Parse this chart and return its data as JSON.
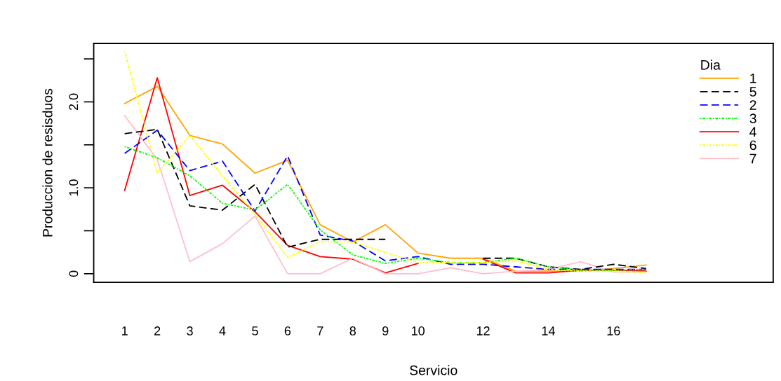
{
  "chart_data": {
    "type": "line",
    "xlabel": "Servicio",
    "ylabel": "Produccion de resisduos",
    "legend_title": "Dia",
    "legend": "top right",
    "grid": false,
    "x": [
      1,
      2,
      3,
      4,
      5,
      6,
      7,
      8,
      9,
      10,
      11,
      12,
      13,
      14,
      15,
      16,
      17
    ],
    "xlim": [
      0.05,
      20.9
    ],
    "xticks": [
      1,
      2,
      3,
      4,
      5,
      6,
      7,
      8,
      9,
      10,
      12,
      14,
      16
    ],
    "ylim": [
      -0.1,
      2.68
    ],
    "yticks": [
      0,
      {
        "value": 0.5,
        "label": null
      },
      {
        "value": 1,
        "label": "1.0"
      },
      {
        "value": 1.5,
        "label": null
      },
      {
        "value": 2,
        "label": "2.0"
      },
      {
        "value": 2.5,
        "label": null
      }
    ],
    "series": [
      {
        "name": "1",
        "color": "#ffa500",
        "line_style": "solid",
        "values": [
          1.98,
          2.18,
          1.61,
          1.51,
          1.17,
          1.32,
          0.57,
          0.37,
          0.57,
          0.24,
          0.18,
          0.18,
          0.03,
          0.03,
          0.03,
          0.06,
          0.1
        ]
      },
      {
        "name": "5",
        "color": "#000000",
        "line_style": "dashed",
        "values": [
          1.63,
          1.68,
          0.79,
          0.74,
          1.04,
          0.31,
          0.4,
          0.4,
          0.4,
          null,
          null,
          0.18,
          0.18,
          0.08,
          0.05,
          0.11,
          0.06
        ]
      },
      {
        "name": "2",
        "color": "#0000ff",
        "line_style": "dashed",
        "values": [
          1.4,
          1.67,
          1.2,
          1.31,
          0.73,
          1.37,
          0.45,
          0.38,
          0.15,
          0.2,
          0.11,
          0.11,
          0.08,
          0.05,
          0.05,
          0.05,
          0.05
        ]
      },
      {
        "name": "3",
        "color": "#00ff00",
        "line_style": "dotted",
        "values": [
          1.48,
          1.35,
          1.14,
          0.82,
          0.74,
          1.04,
          0.51,
          0.22,
          0.12,
          0.18,
          0.13,
          0.13,
          0.18,
          0.08,
          0.04,
          0.04,
          0.05
        ]
      },
      {
        "name": "4",
        "color": "#ff0000",
        "line_style": "solid",
        "values": [
          0.97,
          2.28,
          0.91,
          1.03,
          0.72,
          0.33,
          0.2,
          0.17,
          0.01,
          0.12,
          null,
          0.17,
          0.01,
          0.01,
          0.04,
          0.04,
          0.03
        ]
      },
      {
        "name": "6",
        "color": "#ffff00",
        "line_style": "dotted",
        "values": [
          2.59,
          1.17,
          1.61,
          1.14,
          0.69,
          0.19,
          0.37,
          0.37,
          0.25,
          0.13,
          0.13,
          0.13,
          0.15,
          0.05,
          0.03,
          0.03,
          0.01
        ]
      },
      {
        "name": "7",
        "color": "#ffc0cb",
        "line_style": "solid",
        "values": [
          1.84,
          1.33,
          0.14,
          0.35,
          0.67,
          0.0,
          0.0,
          0.18,
          0.0,
          0.0,
          0.07,
          0.0,
          0.03,
          0.05,
          0.14,
          0.02,
          0.02
        ]
      }
    ]
  }
}
